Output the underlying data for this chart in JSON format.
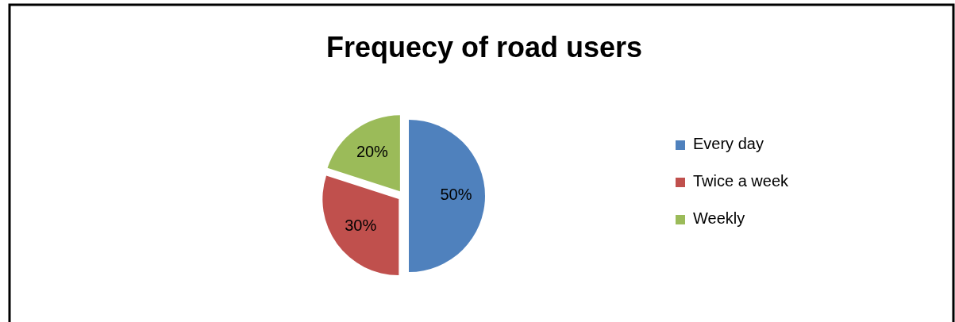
{
  "chart_data": {
    "type": "pie",
    "title": "Frequecy of road users",
    "categories": [
      "Every day",
      "Twice a week",
      "Weekly"
    ],
    "values": [
      50,
      30,
      20
    ],
    "colors": [
      "#4f81bd",
      "#c0504d",
      "#9bbb59"
    ],
    "value_labels": [
      "50%",
      "30%",
      "20%"
    ],
    "legend": "right"
  }
}
